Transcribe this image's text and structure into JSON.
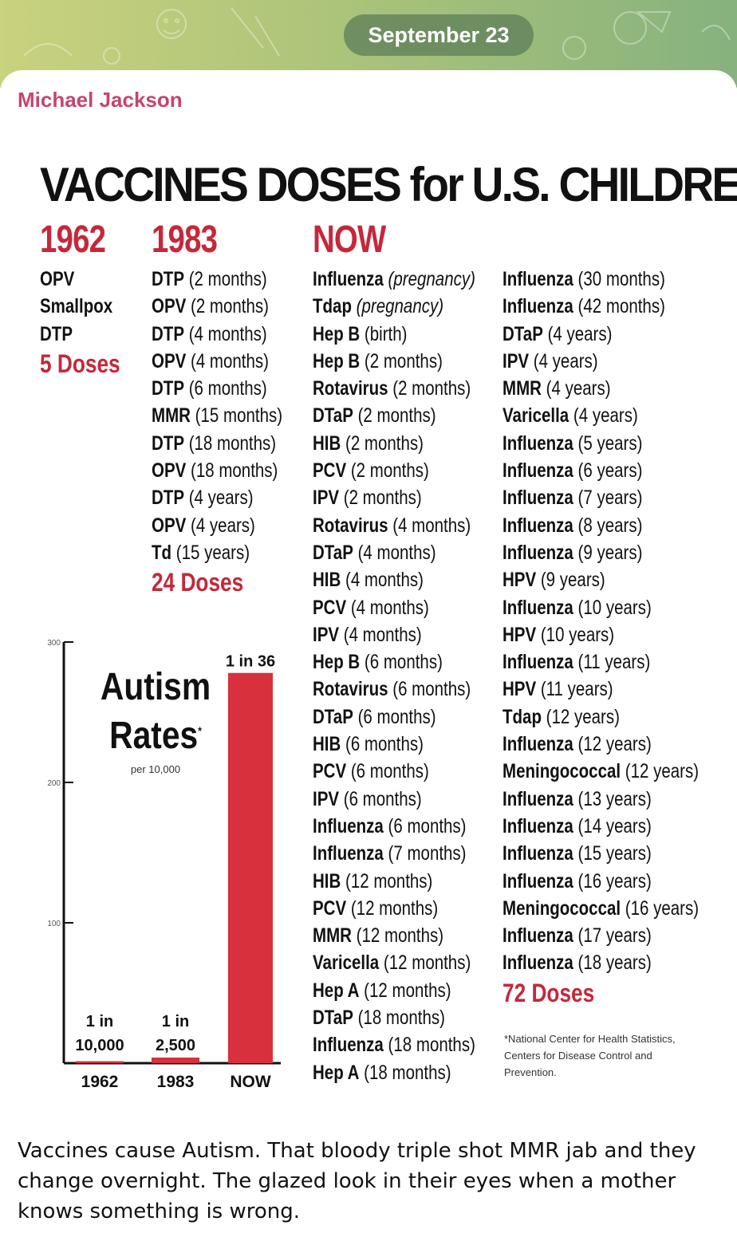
{
  "header": {
    "date": "September 23"
  },
  "message": {
    "sender": "Michael Jackson",
    "caption": "Vaccines cause Autism. That bloody triple shot MMR jab and they change overnight.  The glazed look in their eyes when a mother knows something is wrong."
  },
  "colors": {
    "red": "#c5283a",
    "sender": "#c4456e",
    "bar": "#d8303d"
  },
  "poster": {
    "title": "VACCINES DOSES for U.S. CHILDREN",
    "heads": {
      "y1962": "1962",
      "y1983": "1983",
      "now": "NOW"
    },
    "list1962": [
      {
        "name": "OPV",
        "age": ""
      },
      {
        "name": "Smallpox",
        "age": ""
      },
      {
        "name": "DTP",
        "age": ""
      }
    ],
    "doses1962": "5 Doses",
    "list1983": [
      {
        "name": "DTP",
        "age": "(2 months)"
      },
      {
        "name": "OPV",
        "age": "(2 months)"
      },
      {
        "name": "DTP",
        "age": "(4 months)"
      },
      {
        "name": "OPV",
        "age": "(4 months)"
      },
      {
        "name": "DTP",
        "age": "(6 months)"
      },
      {
        "name": "MMR",
        "age": "(15 months)"
      },
      {
        "name": "DTP",
        "age": "(18 months)"
      },
      {
        "name": "OPV",
        "age": "(18 months)"
      },
      {
        "name": "DTP",
        "age": "(4 years)"
      },
      {
        "name": "OPV",
        "age": "(4 years)"
      },
      {
        "name": "Td",
        "age": "(15 years)"
      }
    ],
    "doses1983": "24 Doses",
    "listNowA": [
      {
        "name": "Influenza",
        "age": "(pregnancy)",
        "italic": true
      },
      {
        "name": "Tdap",
        "age": "(pregnancy)",
        "italic": true
      },
      {
        "name": "Hep B",
        "age": "(birth)"
      },
      {
        "name": "Hep B",
        "age": "(2 months)"
      },
      {
        "name": "Rotavirus",
        "age": "(2 months)"
      },
      {
        "name": "DTaP",
        "age": "(2 months)"
      },
      {
        "name": "HIB",
        "age": "(2 months)"
      },
      {
        "name": "PCV",
        "age": "(2 months)"
      },
      {
        "name": "IPV",
        "age": "(2 months)"
      },
      {
        "name": "Rotavirus",
        "age": "(4 months)"
      },
      {
        "name": "DTaP",
        "age": "(4 months)"
      },
      {
        "name": "HIB",
        "age": "(4 months)"
      },
      {
        "name": "PCV",
        "age": "(4 months)"
      },
      {
        "name": "IPV",
        "age": "(4 months)"
      },
      {
        "name": "Hep B",
        "age": "(6 months)"
      },
      {
        "name": "Rotavirus",
        "age": "(6 months)"
      },
      {
        "name": "DTaP",
        "age": "(6 months)"
      },
      {
        "name": "HIB",
        "age": "(6 months)"
      },
      {
        "name": "PCV",
        "age": "(6 months)"
      },
      {
        "name": "IPV",
        "age": "(6 months)"
      },
      {
        "name": "Influenza",
        "age": "(6 months)"
      },
      {
        "name": "Influenza",
        "age": "(7 months)"
      },
      {
        "name": "HIB",
        "age": "(12 months)"
      },
      {
        "name": "PCV",
        "age": "(12 months)"
      },
      {
        "name": "MMR",
        "age": "(12 months)"
      },
      {
        "name": "Varicella",
        "age": "(12 months)"
      },
      {
        "name": "Hep A",
        "age": "(12 months)"
      },
      {
        "name": "DTaP",
        "age": "(18 months)"
      },
      {
        "name": "Influenza",
        "age": "(18 months)"
      },
      {
        "name": "Hep A",
        "age": "(18 months)"
      }
    ],
    "listNowB": [
      {
        "name": "Influenza",
        "age": "(30 months)"
      },
      {
        "name": "Influenza",
        "age": "(42 months)"
      },
      {
        "name": "DTaP",
        "age": "(4 years)"
      },
      {
        "name": "IPV",
        "age": "(4 years)"
      },
      {
        "name": "MMR",
        "age": "(4 years)"
      },
      {
        "name": "Varicella",
        "age": "(4 years)"
      },
      {
        "name": "Influenza",
        "age": "(5 years)"
      },
      {
        "name": "Influenza",
        "age": "(6 years)"
      },
      {
        "name": "Influenza",
        "age": "(7 years)"
      },
      {
        "name": "Influenza",
        "age": "(8 years)"
      },
      {
        "name": "Influenza",
        "age": "(9 years)"
      },
      {
        "name": "HPV",
        "age": "(9 years)"
      },
      {
        "name": "Influenza",
        "age": "(10 years)"
      },
      {
        "name": "HPV",
        "age": "(10 years)"
      },
      {
        "name": "Influenza",
        "age": "(11 years)"
      },
      {
        "name": "HPV",
        "age": "(11 years)"
      },
      {
        "name": "Tdap",
        "age": "(12 years)"
      },
      {
        "name": "Influenza",
        "age": "(12 years)"
      },
      {
        "name": "Meningococcal",
        "age": "(12 years)"
      },
      {
        "name": "Influenza",
        "age": "(13 years)"
      },
      {
        "name": "Influenza",
        "age": "(14 years)"
      },
      {
        "name": "Influenza",
        "age": "(15 years)"
      },
      {
        "name": "Influenza",
        "age": "(16 years)"
      },
      {
        "name": "Meningococcal",
        "age": "(16 years)"
      },
      {
        "name": "Influenza",
        "age": "(17 years)"
      },
      {
        "name": "Influenza",
        "age": "(18 years)"
      }
    ],
    "dosesNow": "72 Doses",
    "footnote": "*National Center for Health Statistics, Centers for Disease Control and Prevention.",
    "autism_title_line1": "Autism",
    "autism_title_line2": "Rates",
    "autism_asterisk": "*",
    "autism_sub": "per 10,000"
  },
  "chart_data": {
    "type": "bar",
    "categories": [
      "1962",
      "1983",
      "NOW"
    ],
    "values": [
      1,
      4,
      278
    ],
    "data_labels": [
      "1 in 10,000",
      "1 in 2,500",
      "1 in 36"
    ],
    "y_ticks": [
      100,
      200,
      300
    ],
    "ylim": [
      0,
      300
    ]
  }
}
